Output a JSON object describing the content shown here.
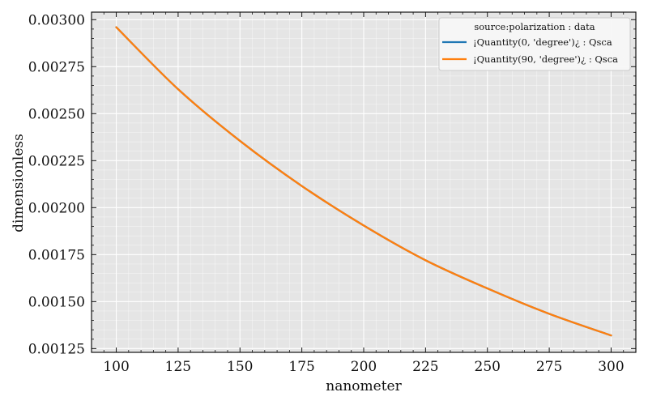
{
  "chart_data": {
    "type": "line",
    "xlabel": "nanometer",
    "ylabel": "dimensionless",
    "xlim": [
      90,
      310
    ],
    "ylim": [
      0.00123,
      0.00304
    ],
    "xticks": [
      100,
      125,
      150,
      175,
      200,
      225,
      250,
      275,
      300
    ],
    "xtick_labels": [
      "100",
      "125",
      "150",
      "175",
      "200",
      "225",
      "250",
      "275",
      "300"
    ],
    "yticks": [
      0.00125,
      0.0015,
      0.00175,
      0.002,
      0.00225,
      0.0025,
      0.00275,
      0.003
    ],
    "ytick_labels": [
      "0.00125",
      "0.00150",
      "0.00175",
      "0.00200",
      "0.00225",
      "0.00250",
      "0.00275",
      "0.00300"
    ],
    "grid": true,
    "legend": {
      "title": "source:polarization : data",
      "placement": "top-right"
    },
    "colors": {
      "background": "#e5e5e5",
      "grid": "#ffffff"
    },
    "series": [
      {
        "name": "¡Quantity(0, 'degree')¿ : Qsca",
        "color": "#1f77b4",
        "x": [
          100,
          125,
          150,
          175,
          200,
          225,
          250,
          275,
          300
        ],
        "y": [
          0.00296,
          0.00263,
          0.002355,
          0.002115,
          0.001905,
          0.00172,
          0.00157,
          0.001435,
          0.00132
        ]
      },
      {
        "name": "¡Quantity(90, 'degree')¿ : Qsca",
        "color": "#ff7f0e",
        "x": [
          100,
          125,
          150,
          175,
          200,
          225,
          250,
          275,
          300
        ],
        "y": [
          0.00296,
          0.00263,
          0.002355,
          0.002115,
          0.001905,
          0.00172,
          0.00157,
          0.001435,
          0.00132
        ]
      }
    ]
  }
}
